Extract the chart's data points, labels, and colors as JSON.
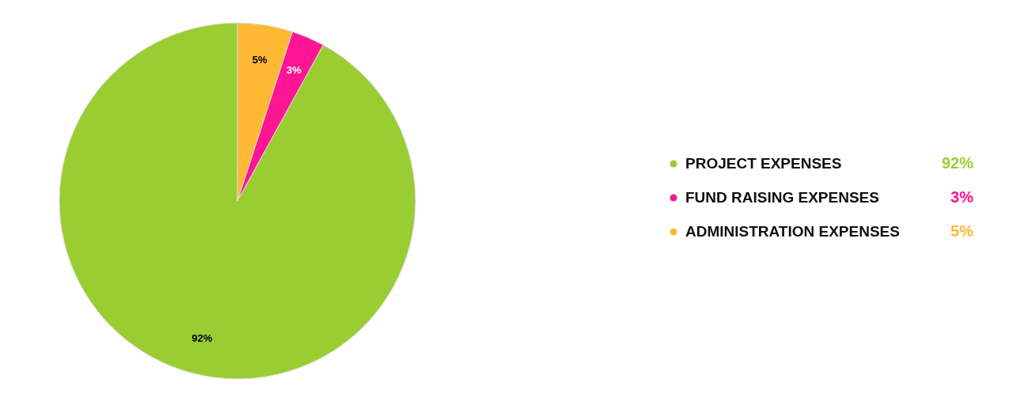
{
  "chart_data": {
    "type": "pie",
    "categories": [
      "PROJECT EXPENSES",
      "FUND RAISING EXPENSES",
      "ADMINISTRATION EXPENSES"
    ],
    "values": [
      92,
      3,
      5
    ],
    "colors": [
      "#9acd32",
      "#ff1493",
      "#ffb833"
    ],
    "value_labels": [
      "92%",
      "3%",
      "5%"
    ],
    "legend": "right"
  }
}
